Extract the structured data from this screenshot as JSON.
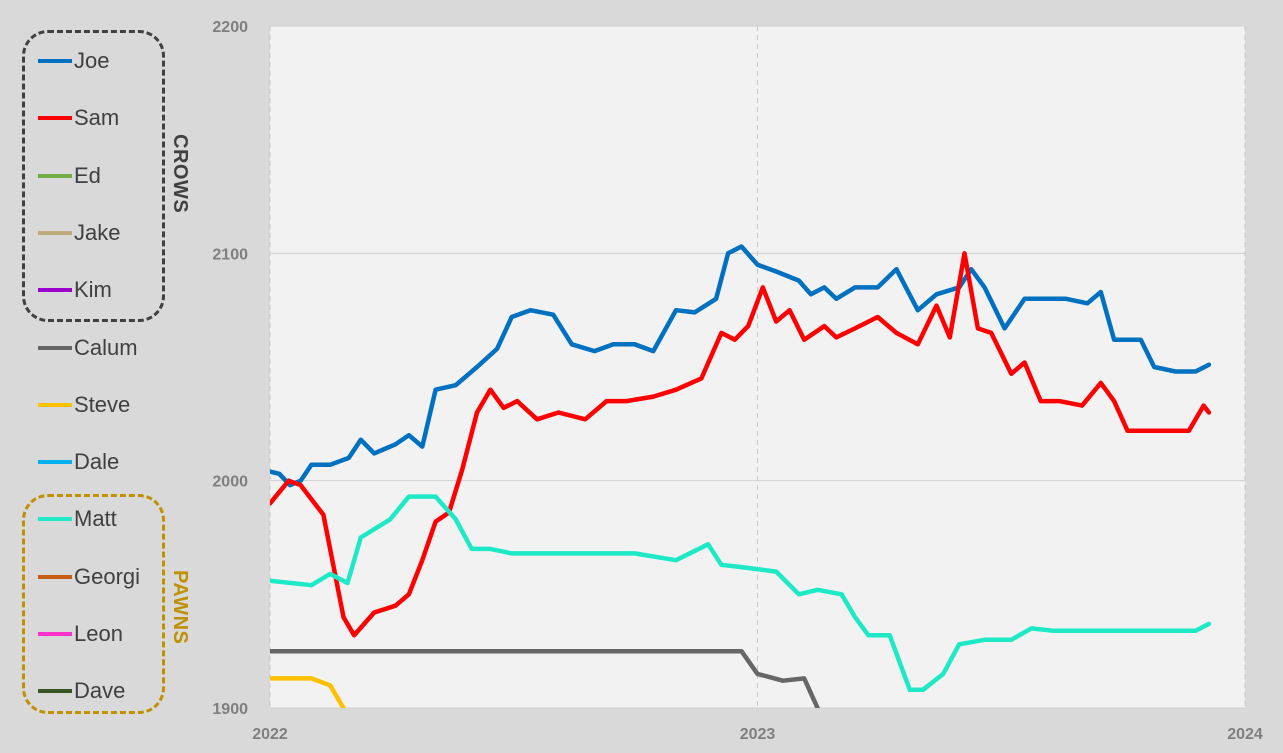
{
  "chart_data": {
    "type": "line",
    "ylim": [
      1900,
      2200
    ],
    "yticks": [
      1900,
      2000,
      2100,
      2200
    ],
    "xlim": [
      "2022-01-01",
      "2024-01-01"
    ],
    "xticks": [
      {
        "date": "2022-01-01",
        "label": "2022"
      },
      {
        "date": "2023-01-01",
        "label": "2023"
      },
      {
        "date": "2024-01-01",
        "label": "2024"
      }
    ],
    "grid": {
      "horizontal": true,
      "vertical_at": [
        "2023-01-01"
      ]
    },
    "legend": {
      "placement": "left",
      "groups": [
        {
          "label": "CROWS",
          "color": "#404040",
          "members": [
            "Joe",
            "Sam",
            "Ed",
            "Jake",
            "Kim"
          ]
        },
        {
          "label": "PAWNS",
          "color": "#bf9000",
          "members": [
            "Matt",
            "Georgi",
            "Leon",
            "Dave"
          ]
        }
      ]
    },
    "series": [
      {
        "name": "Joe",
        "color": "#0070c0",
        "points": [
          [
            "2022-01-01",
            2004
          ],
          [
            "2022-01-08",
            2003
          ],
          [
            "2022-01-16",
            1998
          ],
          [
            "2022-01-24",
            2000
          ],
          [
            "2022-02-01",
            2007
          ],
          [
            "2022-02-15",
            2007
          ],
          [
            "2022-03-01",
            2010
          ],
          [
            "2022-03-10",
            2018
          ],
          [
            "2022-03-20",
            2012
          ],
          [
            "2022-04-05",
            2016
          ],
          [
            "2022-04-15",
            2020
          ],
          [
            "2022-04-25",
            2015
          ],
          [
            "2022-05-05",
            2040
          ],
          [
            "2022-05-20",
            2042
          ],
          [
            "2022-06-05",
            2050
          ],
          [
            "2022-06-20",
            2058
          ],
          [
            "2022-07-01",
            2072
          ],
          [
            "2022-07-15",
            2075
          ],
          [
            "2022-08-01",
            2073
          ],
          [
            "2022-08-15",
            2060
          ],
          [
            "2022-09-01",
            2057
          ],
          [
            "2022-09-15",
            2060
          ],
          [
            "2022-10-01",
            2060
          ],
          [
            "2022-10-15",
            2057
          ],
          [
            "2022-11-01",
            2075
          ],
          [
            "2022-11-15",
            2074
          ],
          [
            "2022-12-01",
            2080
          ],
          [
            "2022-12-10",
            2100
          ],
          [
            "2022-12-20",
            2103
          ],
          [
            "2023-01-01",
            2095
          ],
          [
            "2023-01-15",
            2092
          ],
          [
            "2023-02-01",
            2088
          ],
          [
            "2023-02-10",
            2082
          ],
          [
            "2023-02-20",
            2085
          ],
          [
            "2023-03-01",
            2080
          ],
          [
            "2023-03-15",
            2085
          ],
          [
            "2023-04-01",
            2085
          ],
          [
            "2023-04-15",
            2093
          ],
          [
            "2023-05-01",
            2075
          ],
          [
            "2023-05-15",
            2082
          ],
          [
            "2023-06-01",
            2085
          ],
          [
            "2023-06-10",
            2093
          ],
          [
            "2023-06-20",
            2085
          ],
          [
            "2023-07-05",
            2067
          ],
          [
            "2023-07-20",
            2080
          ],
          [
            "2023-08-01",
            2080
          ],
          [
            "2023-08-20",
            2080
          ],
          [
            "2023-09-05",
            2078
          ],
          [
            "2023-09-15",
            2083
          ],
          [
            "2023-09-25",
            2062
          ],
          [
            "2023-10-15",
            2062
          ],
          [
            "2023-10-25",
            2050
          ],
          [
            "2023-11-10",
            2048
          ],
          [
            "2023-11-25",
            2048
          ],
          [
            "2023-12-05",
            2051
          ]
        ]
      },
      {
        "name": "Sam",
        "color": "#ff0000",
        "points": [
          [
            "2022-01-01",
            1990
          ],
          [
            "2022-01-15",
            2000
          ],
          [
            "2022-01-24",
            1998
          ],
          [
            "2022-02-10",
            1985
          ],
          [
            "2022-02-25",
            1940
          ],
          [
            "2022-03-05",
            1932
          ],
          [
            "2022-03-20",
            1942
          ],
          [
            "2022-04-05",
            1945
          ],
          [
            "2022-04-15",
            1950
          ],
          [
            "2022-04-25",
            1965
          ],
          [
            "2022-05-05",
            1982
          ],
          [
            "2022-05-15",
            1986
          ],
          [
            "2022-05-25",
            2005
          ],
          [
            "2022-06-05",
            2030
          ],
          [
            "2022-06-15",
            2040
          ],
          [
            "2022-06-25",
            2032
          ],
          [
            "2022-07-05",
            2035
          ],
          [
            "2022-07-20",
            2027
          ],
          [
            "2022-08-05",
            2030
          ],
          [
            "2022-08-25",
            2027
          ],
          [
            "2022-09-10",
            2035
          ],
          [
            "2022-09-25",
            2035
          ],
          [
            "2022-10-15",
            2037
          ],
          [
            "2022-11-01",
            2040
          ],
          [
            "2022-11-20",
            2045
          ],
          [
            "2022-12-05",
            2065
          ],
          [
            "2022-12-15",
            2062
          ],
          [
            "2022-12-25",
            2068
          ],
          [
            "2023-01-05",
            2085
          ],
          [
            "2023-01-15",
            2070
          ],
          [
            "2023-01-25",
            2075
          ],
          [
            "2023-02-05",
            2062
          ],
          [
            "2023-02-20",
            2068
          ],
          [
            "2023-03-01",
            2063
          ],
          [
            "2023-03-15",
            2067
          ],
          [
            "2023-04-01",
            2072
          ],
          [
            "2023-04-15",
            2065
          ],
          [
            "2023-05-01",
            2060
          ],
          [
            "2023-05-15",
            2077
          ],
          [
            "2023-05-25",
            2063
          ],
          [
            "2023-06-05",
            2100
          ],
          [
            "2023-06-15",
            2067
          ],
          [
            "2023-06-25",
            2065
          ],
          [
            "2023-07-10",
            2047
          ],
          [
            "2023-07-20",
            2052
          ],
          [
            "2023-08-01",
            2035
          ],
          [
            "2023-08-15",
            2035
          ],
          [
            "2023-09-01",
            2033
          ],
          [
            "2023-09-15",
            2043
          ],
          [
            "2023-09-25",
            2035
          ],
          [
            "2023-10-05",
            2022
          ],
          [
            "2023-10-20",
            2022
          ],
          [
            "2023-11-05",
            2022
          ],
          [
            "2023-11-20",
            2022
          ],
          [
            "2023-12-01",
            2033
          ],
          [
            "2023-12-05",
            2030
          ]
        ]
      },
      {
        "name": "Ed",
        "color": "#70ad47",
        "points": []
      },
      {
        "name": "Jake",
        "color": "#c0aa7a",
        "points": []
      },
      {
        "name": "Kim",
        "color": "#9900cc",
        "points": []
      },
      {
        "name": "Calum",
        "color": "#666666",
        "points": [
          [
            "2022-01-01",
            1925
          ],
          [
            "2022-06-01",
            1925
          ],
          [
            "2022-12-01",
            1925
          ],
          [
            "2022-12-20",
            1925
          ],
          [
            "2023-01-01",
            1915
          ],
          [
            "2023-01-20",
            1912
          ],
          [
            "2023-02-05",
            1913
          ],
          [
            "2023-02-15",
            1900
          ]
        ]
      },
      {
        "name": "Steve",
        "color": "#ffc000",
        "points": [
          [
            "2022-01-01",
            1913
          ],
          [
            "2022-02-01",
            1913
          ],
          [
            "2022-02-15",
            1910
          ],
          [
            "2022-02-25",
            1900
          ]
        ]
      },
      {
        "name": "Dale",
        "color": "#00b0f0",
        "points": []
      },
      {
        "name": "Matt",
        "color": "#1de9c6",
        "points": [
          [
            "2022-01-01",
            1956
          ],
          [
            "2022-02-01",
            1954
          ],
          [
            "2022-02-15",
            1959
          ],
          [
            "2022-02-28",
            1955
          ],
          [
            "2022-03-10",
            1975
          ],
          [
            "2022-04-01",
            1983
          ],
          [
            "2022-04-15",
            1993
          ],
          [
            "2022-05-05",
            1993
          ],
          [
            "2022-05-20",
            1983
          ],
          [
            "2022-06-01",
            1970
          ],
          [
            "2022-06-15",
            1970
          ],
          [
            "2022-07-01",
            1968
          ],
          [
            "2022-08-01",
            1968
          ],
          [
            "2022-09-01",
            1968
          ],
          [
            "2022-10-01",
            1968
          ],
          [
            "2022-11-01",
            1965
          ],
          [
            "2022-11-25",
            1972
          ],
          [
            "2022-12-05",
            1963
          ],
          [
            "2022-12-20",
            1962
          ],
          [
            "2023-01-15",
            1960
          ],
          [
            "2023-02-01",
            1950
          ],
          [
            "2023-02-15",
            1952
          ],
          [
            "2023-03-05",
            1950
          ],
          [
            "2023-03-15",
            1940
          ],
          [
            "2023-03-25",
            1932
          ],
          [
            "2023-04-10",
            1932
          ],
          [
            "2023-04-25",
            1908
          ],
          [
            "2023-05-05",
            1908
          ],
          [
            "2023-05-20",
            1915
          ],
          [
            "2023-06-01",
            1928
          ],
          [
            "2023-06-20",
            1930
          ],
          [
            "2023-07-10",
            1930
          ],
          [
            "2023-07-25",
            1935
          ],
          [
            "2023-08-10",
            1934
          ],
          [
            "2023-09-01",
            1934
          ],
          [
            "2023-10-01",
            1934
          ],
          [
            "2023-11-01",
            1934
          ],
          [
            "2023-11-25",
            1934
          ],
          [
            "2023-12-05",
            1937
          ]
        ]
      },
      {
        "name": "Georgi",
        "color": "#c55a11",
        "points": []
      },
      {
        "name": "Leon",
        "color": "#ff33cc",
        "points": []
      },
      {
        "name": "Dave",
        "color": "#375623",
        "points": []
      }
    ]
  }
}
